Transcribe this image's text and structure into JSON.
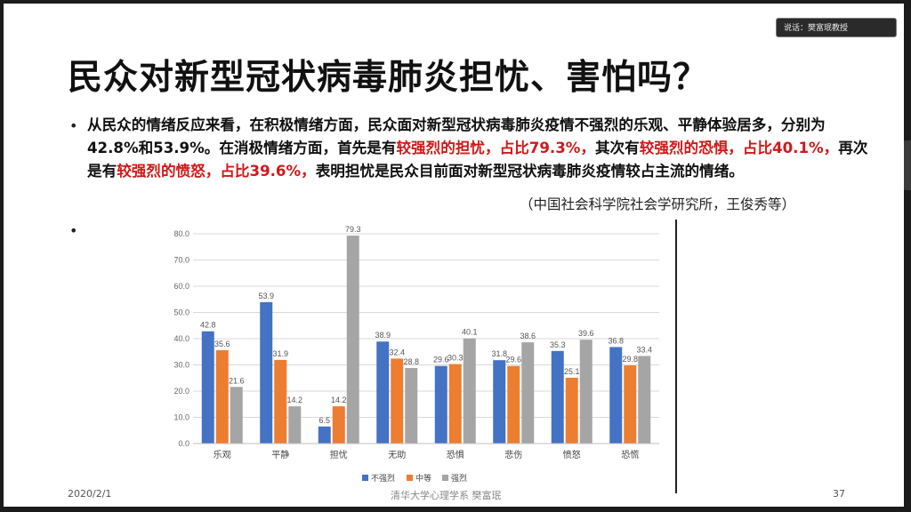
{
  "speaker_tag": "说话：樊富珉教授",
  "slide": {
    "title": "民众对新型冠状病毒肺炎担忧、害怕吗？",
    "bullet_char": "•",
    "paragraph": {
      "t1": "从民众的情绪反应来看，在积极情绪方面，民众面对新型冠状病毒肺炎疫情不强烈的乐观、平静体验居多，分别为42.8%和53.9%。在消极情绪方面，首先是有",
      "r1": "较强烈的担忧，占比79.3%，",
      "t2": "其次有",
      "r2": "较强烈的恐惧，占比40.1%，",
      "t3": "再次是有",
      "r3": "较强烈的愤怒，占比39.6%，",
      "t4": "表明担忧是民众目前面对新型冠状病毒肺炎疫情较占主流的情绪。"
    },
    "source": "（中国社会科学院社会学研究所，王俊秀等）",
    "footer": {
      "date": "2020/2/1",
      "author": "清华大学心理学系  樊富珉",
      "page": "37"
    }
  },
  "chart_data": {
    "type": "bar",
    "categories": [
      "乐观",
      "平静",
      "担忧",
      "无助",
      "恐惧",
      "悲伤",
      "愤怒",
      "恐慌"
    ],
    "series": [
      {
        "name": "不强烈",
        "color": "#4472c4",
        "values": [
          42.8,
          53.9,
          6.5,
          38.9,
          29.6,
          31.8,
          35.3,
          36.8
        ]
      },
      {
        "name": "中等",
        "color": "#ed7d31",
        "values": [
          35.6,
          31.9,
          14.2,
          32.4,
          30.3,
          29.6,
          25.1,
          29.8
        ]
      },
      {
        "name": "强烈",
        "color": "#a5a5a5",
        "values": [
          21.6,
          14.2,
          79.3,
          28.8,
          40.1,
          38.6,
          39.6,
          33.4
        ]
      }
    ],
    "ylim": [
      0,
      80
    ],
    "yticks": [
      "0.0",
      "10.0",
      "20.0",
      "30.0",
      "40.0",
      "50.0",
      "60.0",
      "70.0",
      "80.0"
    ],
    "grid": true,
    "legend": "bottom",
    "title": "",
    "xlabel": "",
    "ylabel": ""
  }
}
